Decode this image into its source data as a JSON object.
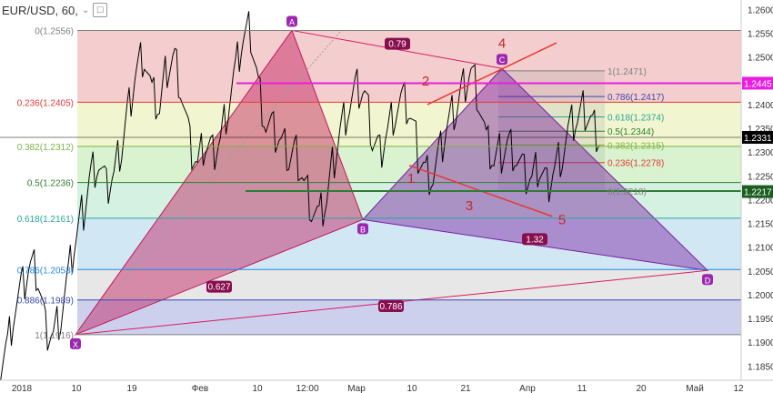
{
  "header": {
    "symbol": "EUR/USD, 60,",
    "dropdown_icon": "chevron-down-icon",
    "toggle_icon": "square-icon"
  },
  "chart_data": {
    "type": "line",
    "y_axis": {
      "min": 1.182,
      "max": 1.262,
      "ticks": [
        "1.2600",
        "1.2550",
        "1.2500",
        "1.2450",
        "1.2400",
        "1.2350",
        "1.2300",
        "1.2250",
        "1.2200",
        "1.2150",
        "1.2100",
        "1.2050",
        "1.2000",
        "1.1950",
        "1.1900",
        "1.1850"
      ]
    },
    "x_axis": {
      "ticks": [
        "2018",
        "10",
        "19",
        "Фев",
        "10",
        "12:00",
        "Мар",
        "10",
        "21",
        "Апр",
        "11",
        "20",
        "Май",
        "12"
      ]
    },
    "price_labels": [
      {
        "value": 1.2445,
        "text": "1.2445",
        "color": "#e91ee0"
      },
      {
        "value": 1.2331,
        "text": "1.2331",
        "color": "#000000"
      },
      {
        "value": 1.2217,
        "text": "1.2217",
        "color": "#1b5e20"
      }
    ],
    "fib_left": {
      "levels": [
        {
          "ratio": "0",
          "value": 1.2556,
          "label": "0(1.2556)",
          "color": "#808080",
          "fill": "#f2c6c6"
        },
        {
          "ratio": "0.236",
          "value": 1.2405,
          "label": "0.236(1.2405)",
          "color": "#e53935",
          "fill": "#f0f5c8"
        },
        {
          "ratio": "0.382",
          "value": 1.2312,
          "label": "0.382(1.2312)",
          "color": "#7cb342",
          "fill": "#d2f0c8"
        },
        {
          "ratio": "0.5",
          "value": 1.2236,
          "label": "0.5(1.2236)",
          "color": "#2e7d32",
          "fill": "#cdeedd"
        },
        {
          "ratio": "0.618",
          "value": 1.2161,
          "label": "0.618(1.2161)",
          "color": "#26a69a",
          "fill": "#c9e4f2"
        },
        {
          "ratio": "0.786",
          "value": 1.2053,
          "label": "0.786(1.2053)",
          "color": "#1e88e5",
          "fill": "#e3e3e3"
        },
        {
          "ratio": "0.886",
          "value": 1.1989,
          "label": "0.886(1.1989)",
          "color": "#3949ab",
          "fill": "#c4c8ea"
        },
        {
          "ratio": "1",
          "value": 1.1916,
          "label": "1(1.1916)",
          "color": "#808080",
          "fill": ""
        }
      ]
    },
    "fib_right": {
      "levels": [
        {
          "value": 1.2471,
          "label": "1(1.2471)",
          "color": "#808080"
        },
        {
          "value": 1.2417,
          "label": "0.786(1.2417)",
          "color": "#3949ab"
        },
        {
          "value": 1.2374,
          "label": "0.618(1.2374)",
          "color": "#26a69a"
        },
        {
          "value": 1.2344,
          "label": "0.5(1.2344)",
          "color": "#2e7d32"
        },
        {
          "value": 1.2315,
          "label": "0.382(1.2315)",
          "color": "#7cb342"
        },
        {
          "value": 1.2278,
          "label": "0.236(1.2278)",
          "color": "#e53935"
        },
        {
          "value": 1.2218,
          "label": "0(1.2218)",
          "color": "#808080"
        }
      ]
    },
    "pattern": {
      "points": [
        {
          "name": "X",
          "value": 1.1916
        },
        {
          "name": "A",
          "value": 1.2556
        },
        {
          "name": "B",
          "value": 1.2158
        },
        {
          "name": "C",
          "value": 1.2476
        },
        {
          "name": "D",
          "value": 1.2051
        }
      ],
      "ratios": [
        "0.79",
        "0.627",
        "1.32",
        "0.786"
      ]
    },
    "wave_labels": [
      "1",
      "2",
      "3",
      "4",
      "5"
    ],
    "price_series": [
      1.1855,
      1.19,
      1.1975,
      1.2015,
      1.206,
      1.204,
      1.193,
      1.192,
      1.196,
      1.204,
      1.212,
      1.218,
      1.226,
      1.228,
      1.222,
      1.225,
      1.231,
      1.24,
      1.248,
      1.251,
      1.242,
      1.239,
      1.248,
      1.25,
      1.242,
      1.231,
      1.227,
      1.232,
      1.23,
      1.233,
      1.24,
      1.247,
      1.254,
      1.2555,
      1.244,
      1.236,
      1.234,
      1.232,
      1.229,
      1.23,
      1.224,
      1.219,
      1.216,
      1.22,
      1.229,
      1.236,
      1.24,
      1.243,
      1.242,
      1.233,
      1.23,
      1.235,
      1.239,
      1.241,
      1.238,
      1.23,
      1.226,
      1.225,
      1.23,
      1.236,
      1.239,
      1.244,
      1.2476,
      1.242,
      1.232,
      1.228,
      1.23,
      1.232,
      1.229,
      1.225,
      1.224,
      1.227,
      1.223,
      1.227,
      1.23,
      1.235,
      1.237,
      1.239,
      1.236,
      1.2331
    ]
  }
}
